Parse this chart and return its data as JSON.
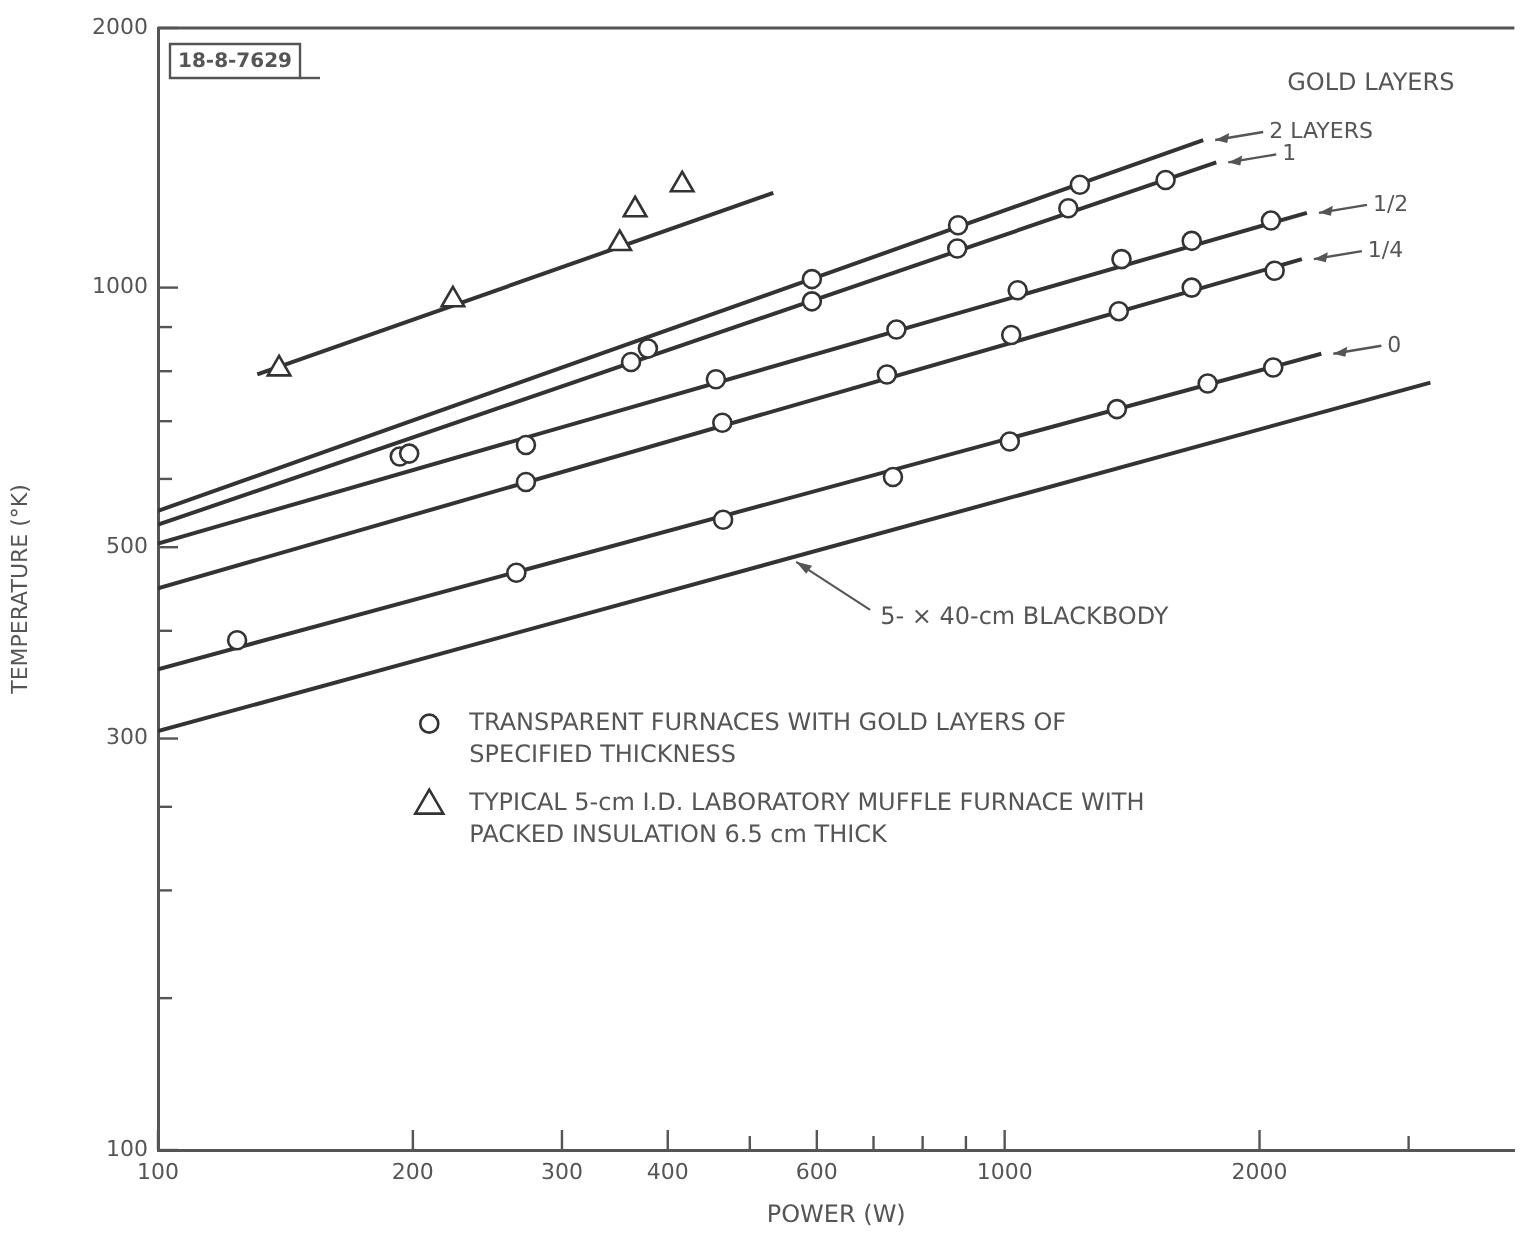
{
  "chart_data": {
    "type": "scatter",
    "xlabel": "POWER (W)",
    "ylabel": "TEMPERATURE (°K)",
    "log": "xy",
    "xlim": [
      100,
      4000
    ],
    "ylim": [
      100,
      2000
    ],
    "xticks": [
      100,
      200,
      300,
      400,
      {
        "value": 500,
        "label": null
      },
      600,
      {
        "value": 700,
        "label": null
      },
      {
        "value": 800,
        "label": null
      },
      {
        "value": 900,
        "label": null
      },
      1000,
      2000,
      {
        "value": 3000,
        "label": null
      }
    ],
    "yticks": [
      100,
      {
        "value": 150,
        "label": null
      },
      {
        "value": 200,
        "label": null
      },
      {
        "value": 250,
        "label": null
      },
      300,
      {
        "value": 400,
        "label": null
      },
      500,
      {
        "value": 600,
        "label": null
      },
      {
        "value": 700,
        "label": null
      },
      {
        "value": 800,
        "label": null
      },
      {
        "value": 900,
        "label": null
      },
      1000,
      2000
    ],
    "grid": false,
    "legend": "center",
    "annotations": [
      "18-8-7629",
      "GOLD LAYERS",
      {
        "text": "5- × 40-cm BLACKBODY",
        "x": 558,
        "y": 486
      }
    ],
    "series": [
      {
        "name": "TRANSPARENT FURNACES WITH GOLD LAYERS OF SPECIFIED THICKNESS",
        "marker": "circle",
        "color": "#333333",
        "x": [
          124,
          193,
          198,
          272,
          265,
          272,
          362,
          379,
          456,
          464,
          465,
          592,
          592,
          881,
          879,
          1227,
          1189,
          1549,
          745,
          1036,
          1374,
          1663,
          2063,
          726,
          1018,
          1364,
          1663,
          2084,
          738,
          1014,
          1357,
          1737,
          2076
        ],
        "values": [
          390,
          637,
          642,
          657,
          467,
          595,
          820,
          850,
          783,
          697,
          538,
          1023,
          964,
          1181,
          1110,
          1316,
          1236,
          1333,
          894,
          993,
          1079,
          1133,
          1196,
          793,
          881,
          939,
          1000,
          1046,
          603,
          663,
          723,
          774,
          808
        ]
      },
      {
        "name": "TYPICAL 5-cm I.D. LABORATORY MUFFLE FURNACE WITH PACKED INSULATION 6.5 cm THICK",
        "marker": "triangle",
        "color": "#333333",
        "x": [
          139,
          223,
          351,
          366,
          416
        ],
        "values": [
          805,
          968,
          1125,
          1231,
          1316
        ]
      },
      {
        "type": "line",
        "marker": "none",
        "color": "#333333",
        "x": [
          131,
          533
        ],
        "values": [
          793,
          1288
        ]
      },
      {
        "name": "2 LAYERS",
        "type": "line",
        "marker": "none",
        "color": "#333333",
        "x": [
          100,
          1716
        ],
        "values": [
          551,
          1483
        ]
      },
      {
        "name": "1",
        "type": "line",
        "marker": "none",
        "color": "#333333",
        "x": [
          100,
          1778
        ],
        "values": [
          531,
          1397
        ]
      },
      {
        "name": "1/2",
        "type": "line",
        "marker": "none",
        "color": "#333333",
        "x": [
          100,
          2275
        ],
        "values": [
          505,
          1221
        ]
      },
      {
        "name": "1/4",
        "type": "line",
        "marker": "none",
        "color": "#333333",
        "x": [
          100,
          2244
        ],
        "values": [
          448,
          1079
        ]
      },
      {
        "name": "0",
        "type": "line",
        "marker": "none",
        "color": "#333333",
        "x": [
          100,
          2366
        ],
        "values": [
          361,
          838
        ]
      },
      {
        "type": "line",
        "marker": "none",
        "color": "#333333",
        "x": [
          100,
          3183
        ],
        "values": [
          306,
          776
        ]
      }
    ]
  }
}
